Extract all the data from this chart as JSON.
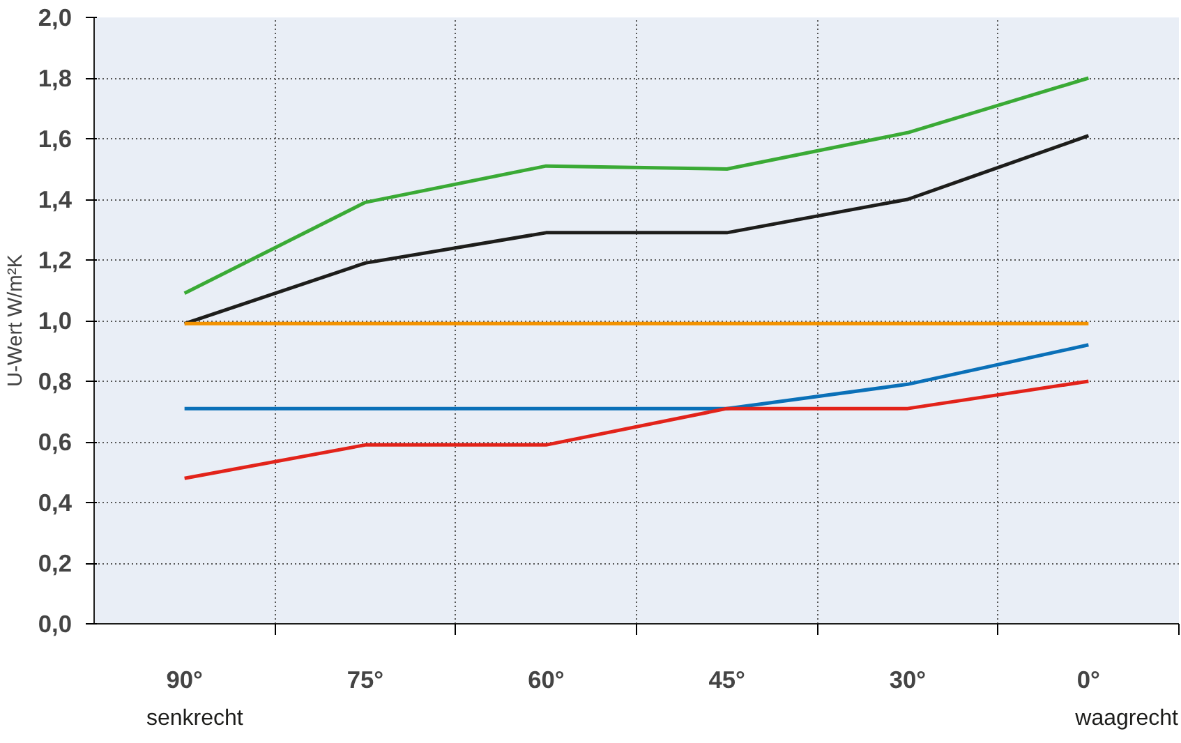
{
  "chart_data": {
    "type": "line",
    "ylabel": "U-Wert W/m²K",
    "categories": [
      "90°",
      "75°",
      "60°",
      "45°",
      "30°",
      "0°"
    ],
    "series": [
      {
        "color": "#3aaa35",
        "values": [
          1.09,
          1.39,
          1.51,
          1.5,
          1.62,
          1.8
        ]
      },
      {
        "color": "#1d1d1b",
        "values": [
          0.99,
          1.19,
          1.29,
          1.29,
          1.4,
          1.61
        ]
      },
      {
        "color": "#f39200",
        "values": [
          0.99,
          0.99,
          0.99,
          0.99,
          0.99,
          0.99
        ]
      },
      {
        "color": "#0a70b8",
        "values": [
          0.71,
          0.71,
          0.71,
          0.71,
          0.79,
          0.92
        ]
      },
      {
        "color": "#e2231a",
        "values": [
          0.48,
          0.59,
          0.59,
          0.71,
          0.71,
          0.8
        ]
      }
    ],
    "ylim": [
      0,
      2
    ],
    "yticks": [
      {
        "value": 0,
        "label": "0,0"
      },
      {
        "value": 0.2,
        "label": "0,2"
      },
      {
        "value": 0.4,
        "label": "0,4"
      },
      {
        "value": 0.6,
        "label": "0,6"
      },
      {
        "value": 0.8,
        "label": "0,8"
      },
      {
        "value": 1.0,
        "label": "1,0"
      },
      {
        "value": 1.2,
        "label": "1,2"
      },
      {
        "value": 1.4,
        "label": "1,4"
      },
      {
        "value": 1.6,
        "label": "1,6"
      },
      {
        "value": 1.8,
        "label": "1,8"
      },
      {
        "value": 2.0,
        "label": "2,0"
      }
    ],
    "grid": true,
    "marker": "none",
    "line_style": "solid",
    "annotations": [
      "senkrecht",
      "waagrecht"
    ]
  }
}
